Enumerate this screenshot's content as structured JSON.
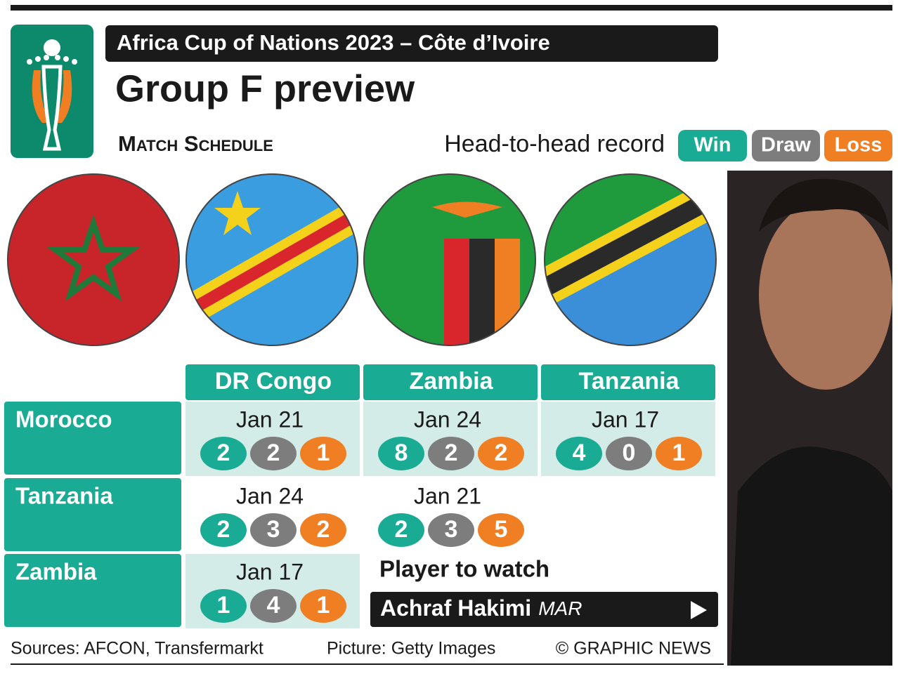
{
  "header": {
    "kicker": "Africa Cup of Nations 2023 – Côte d’Ivoire",
    "title": "Group F preview",
    "section": "Match Schedule",
    "legend_title": "Head-to-head record",
    "legend": [
      "Win",
      "Draw",
      "Loss"
    ]
  },
  "table": {
    "columns": [
      "DR Congo",
      "Zambia",
      "Tanzania"
    ],
    "rows": [
      {
        "team": "Morocco",
        "matches": [
          {
            "date": "Jan 21",
            "record": [
              2,
              2,
              1
            ]
          },
          {
            "date": "Jan 24",
            "record": [
              8,
              2,
              2
            ]
          },
          {
            "date": "Jan 17",
            "record": [
              4,
              0,
              1
            ]
          }
        ]
      },
      {
        "team": "Tanzania",
        "matches": [
          {
            "date": "Jan 24",
            "record": [
              2,
              3,
              2
            ]
          },
          {
            "date": "Jan 21",
            "record": [
              2,
              3,
              5
            ]
          }
        ]
      },
      {
        "team": "Zambia",
        "matches": [
          {
            "date": "Jan 17",
            "record": [
              1,
              4,
              1
            ]
          }
        ]
      }
    ]
  },
  "player": {
    "label": "Player to watch",
    "name": "Achraf Hakimi",
    "country": "MAR"
  },
  "footer": {
    "sources": "Sources: AFCON, Transfermarkt",
    "picture": "Picture: Getty Images",
    "credit": "© GRAPHIC NEWS"
  }
}
